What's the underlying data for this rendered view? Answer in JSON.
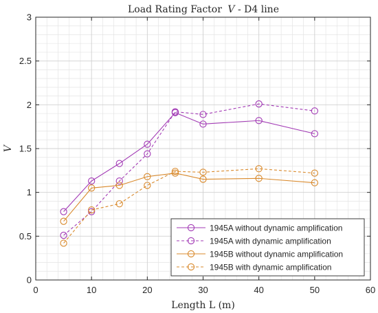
{
  "chart_data": {
    "type": "line",
    "title": "Load Rating Factor V - D4 line",
    "title_prefix": "Load Rating Factor",
    "title_var": "V",
    "title_suffix": " - D4 line",
    "xlabel": "Length L (m)",
    "ylabel": "V",
    "xlim": [
      0,
      60
    ],
    "ylim": [
      0,
      3
    ],
    "xticks": [
      0,
      10,
      20,
      30,
      40,
      50,
      60
    ],
    "yticks": [
      0,
      0.5,
      1,
      1.5,
      2,
      2.5,
      3
    ],
    "xtick_labels": [
      "0",
      "10",
      "20",
      "30",
      "40",
      "50",
      "60"
    ],
    "ytick_labels": [
      "0",
      "0.5",
      "1",
      "1.5",
      "2",
      "2.5",
      "3"
    ],
    "grid": true,
    "minor_grid": true,
    "legend_position": "bottom-right",
    "x": [
      5,
      10,
      15,
      20,
      25,
      30,
      40,
      50
    ],
    "series": [
      {
        "name": "1945A without dynamic amplification",
        "values": [
          0.78,
          1.13,
          1.33,
          1.55,
          1.91,
          1.78,
          1.82,
          1.67
        ],
        "color": "#a23ab5",
        "dash": "solid",
        "marker": "circle"
      },
      {
        "name": "1945A with dynamic amplification",
        "values": [
          0.51,
          0.78,
          1.13,
          1.44,
          1.92,
          1.89,
          2.01,
          1.93
        ],
        "color": "#a23ab5",
        "dash": "dashed",
        "marker": "circle"
      },
      {
        "name": "1945B without dynamic amplification",
        "values": [
          0.67,
          1.05,
          1.08,
          1.18,
          1.22,
          1.15,
          1.16,
          1.11
        ],
        "color": "#d9892b",
        "dash": "solid",
        "marker": "circle"
      },
      {
        "name": "1945B with dynamic amplification",
        "values": [
          0.42,
          0.8,
          0.87,
          1.08,
          1.24,
          1.23,
          1.27,
          1.22
        ],
        "color": "#d9892b",
        "dash": "dashed",
        "marker": "circle"
      }
    ]
  }
}
